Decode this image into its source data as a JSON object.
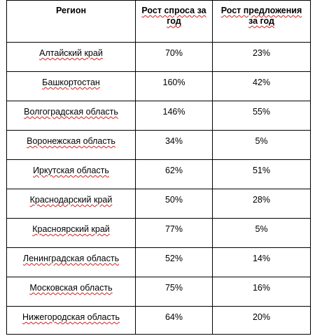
{
  "table": {
    "headers": [
      "Регион",
      "Рост спроса за год",
      "Рост предложения за год"
    ],
    "rows": [
      [
        "Алтайский край",
        "70%",
        "23%"
      ],
      [
        "Башкортостан",
        "160%",
        "42%"
      ],
      [
        "Волгоградская область",
        "146%",
        "55%"
      ],
      [
        "Воронежская область",
        "34%",
        "5%"
      ],
      [
        "Иркутская область",
        "62%",
        "51%"
      ],
      [
        "Краснодарский край",
        "50%",
        "28%"
      ],
      [
        "Красноярский край",
        "77%",
        "5%"
      ],
      [
        "Ленинградская область",
        "52%",
        "14%"
      ],
      [
        "Московская область",
        "75%",
        "16%"
      ],
      [
        "Нижегородская область",
        "64%",
        "20%"
      ]
    ]
  },
  "colors": {
    "border": "#000000",
    "spellcheck_underline": "#d02020"
  }
}
